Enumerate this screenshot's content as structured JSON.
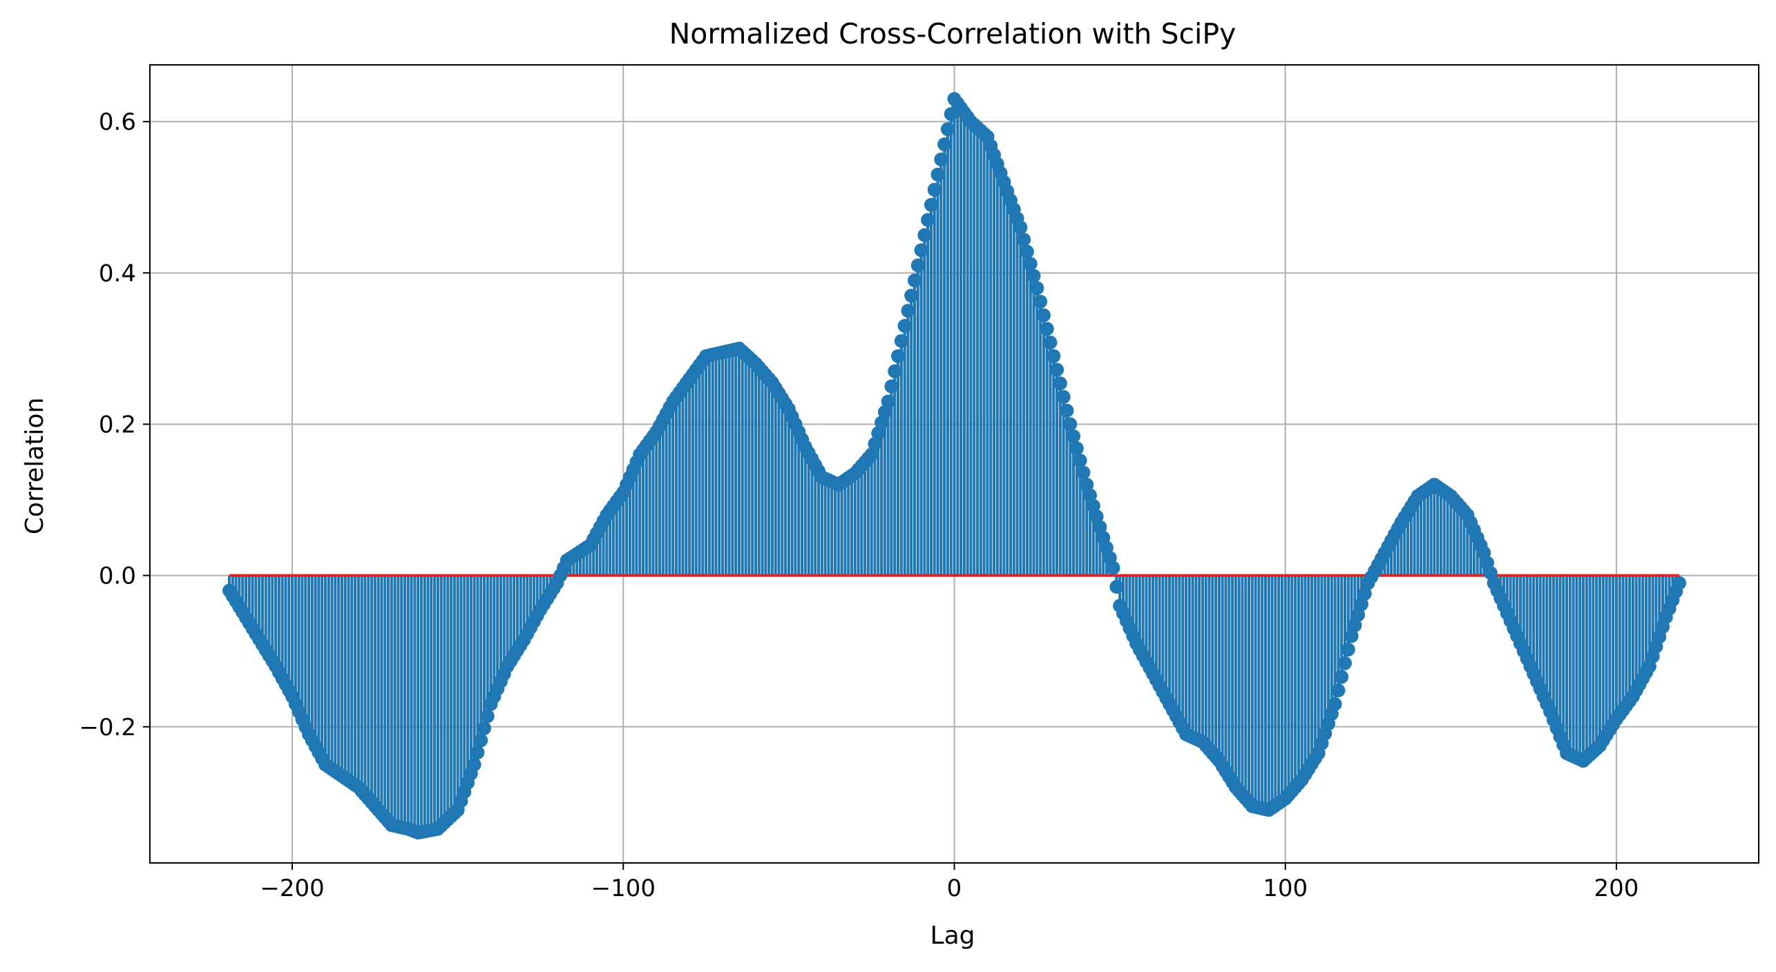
{
  "chart_data": {
    "type": "stem",
    "title": "Normalized Cross-Correlation with SciPy",
    "xlabel": "Lag",
    "ylabel": "Correlation",
    "xlim": [
      -243,
      243
    ],
    "ylim": [
      -0.38,
      0.675
    ],
    "xticks": [
      -200,
      -100,
      0,
      100,
      200
    ],
    "xtick_labels": [
      "−200",
      "−100",
      "0",
      "100",
      "200"
    ],
    "yticks": [
      -0.2,
      0.0,
      0.2,
      0.4,
      0.6
    ],
    "ytick_labels": [
      "−0.2",
      "0.0",
      "0.2",
      "0.4",
      "0.6"
    ],
    "grid": true,
    "baseline": {
      "y": 0,
      "x_range": [
        -219,
        219
      ],
      "color": "#d62728"
    },
    "series_color": "#1f77b4",
    "lag_step": 1,
    "curve_anchors": [
      {
        "x": -219,
        "y": -0.02
      },
      {
        "x": -212,
        "y": -0.07
      },
      {
        "x": -205,
        "y": -0.12
      },
      {
        "x": -200,
        "y": -0.16
      },
      {
        "x": -195,
        "y": -0.21
      },
      {
        "x": -190,
        "y": -0.25
      },
      {
        "x": -185,
        "y": -0.265
      },
      {
        "x": -180,
        "y": -0.28
      },
      {
        "x": -175,
        "y": -0.305
      },
      {
        "x": -170,
        "y": -0.33
      },
      {
        "x": -165,
        "y": -0.335
      },
      {
        "x": -162,
        "y": -0.34
      },
      {
        "x": -156,
        "y": -0.335
      },
      {
        "x": -150,
        "y": -0.31
      },
      {
        "x": -145,
        "y": -0.25
      },
      {
        "x": -140,
        "y": -0.17
      },
      {
        "x": -135,
        "y": -0.12
      },
      {
        "x": -130,
        "y": -0.085
      },
      {
        "x": -125,
        "y": -0.045
      },
      {
        "x": -120,
        "y": -0.01
      },
      {
        "x": -117,
        "y": 0.02
      },
      {
        "x": -110,
        "y": 0.04
      },
      {
        "x": -105,
        "y": 0.08
      },
      {
        "x": -100,
        "y": 0.11
      },
      {
        "x": -95,
        "y": 0.16
      },
      {
        "x": -90,
        "y": 0.19
      },
      {
        "x": -85,
        "y": 0.23
      },
      {
        "x": -80,
        "y": 0.26
      },
      {
        "x": -75,
        "y": 0.29
      },
      {
        "x": -70,
        "y": 0.295
      },
      {
        "x": -65,
        "y": 0.3
      },
      {
        "x": -60,
        "y": 0.28
      },
      {
        "x": -55,
        "y": 0.255
      },
      {
        "x": -50,
        "y": 0.22
      },
      {
        "x": -45,
        "y": 0.17
      },
      {
        "x": -40,
        "y": 0.13
      },
      {
        "x": -35,
        "y": 0.12
      },
      {
        "x": -30,
        "y": 0.135
      },
      {
        "x": -25,
        "y": 0.16
      },
      {
        "x": -20,
        "y": 0.23
      },
      {
        "x": -15,
        "y": 0.33
      },
      {
        "x": -10,
        "y": 0.43
      },
      {
        "x": -5,
        "y": 0.53
      },
      {
        "x": 0,
        "y": 0.63
      },
      {
        "x": 5,
        "y": 0.6
      },
      {
        "x": 10,
        "y": 0.58
      },
      {
        "x": 15,
        "y": 0.52
      },
      {
        "x": 20,
        "y": 0.46
      },
      {
        "x": 25,
        "y": 0.38
      },
      {
        "x": 30,
        "y": 0.29
      },
      {
        "x": 35,
        "y": 0.2
      },
      {
        "x": 40,
        "y": 0.12
      },
      {
        "x": 45,
        "y": 0.05
      },
      {
        "x": 48,
        "y": 0.01
      },
      {
        "x": 50,
        "y": -0.04
      },
      {
        "x": 55,
        "y": -0.09
      },
      {
        "x": 60,
        "y": -0.13
      },
      {
        "x": 65,
        "y": -0.17
      },
      {
        "x": 70,
        "y": -0.21
      },
      {
        "x": 75,
        "y": -0.22
      },
      {
        "x": 80,
        "y": -0.245
      },
      {
        "x": 85,
        "y": -0.28
      },
      {
        "x": 90,
        "y": -0.305
      },
      {
        "x": 95,
        "y": -0.31
      },
      {
        "x": 100,
        "y": -0.295
      },
      {
        "x": 105,
        "y": -0.27
      },
      {
        "x": 110,
        "y": -0.235
      },
      {
        "x": 115,
        "y": -0.17
      },
      {
        "x": 120,
        "y": -0.08
      },
      {
        "x": 125,
        "y": -0.01
      },
      {
        "x": 130,
        "y": 0.03
      },
      {
        "x": 135,
        "y": 0.07
      },
      {
        "x": 140,
        "y": 0.105
      },
      {
        "x": 145,
        "y": 0.12
      },
      {
        "x": 150,
        "y": 0.105
      },
      {
        "x": 155,
        "y": 0.08
      },
      {
        "x": 160,
        "y": 0.03
      },
      {
        "x": 163,
        "y": -0.01
      },
      {
        "x": 168,
        "y": -0.06
      },
      {
        "x": 175,
        "y": -0.13
      },
      {
        "x": 180,
        "y": -0.18
      },
      {
        "x": 185,
        "y": -0.235
      },
      {
        "x": 190,
        "y": -0.245
      },
      {
        "x": 195,
        "y": -0.225
      },
      {
        "x": 200,
        "y": -0.19
      },
      {
        "x": 205,
        "y": -0.16
      },
      {
        "x": 210,
        "y": -0.12
      },
      {
        "x": 215,
        "y": -0.055
      },
      {
        "x": 219,
        "y": -0.01
      }
    ]
  }
}
